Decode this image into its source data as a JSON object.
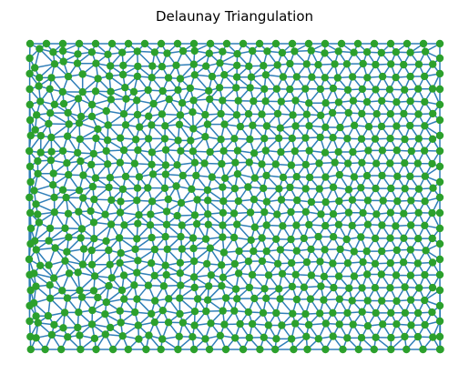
{
  "title": "Delaunay Triangulation",
  "colors": {
    "edges": "#2f7eb8",
    "points": "#2ca02c",
    "background": "#ffffff"
  },
  "point_cloud": {
    "spacing": "dense-right-sparse-left",
    "approx_points": 620
  }
}
